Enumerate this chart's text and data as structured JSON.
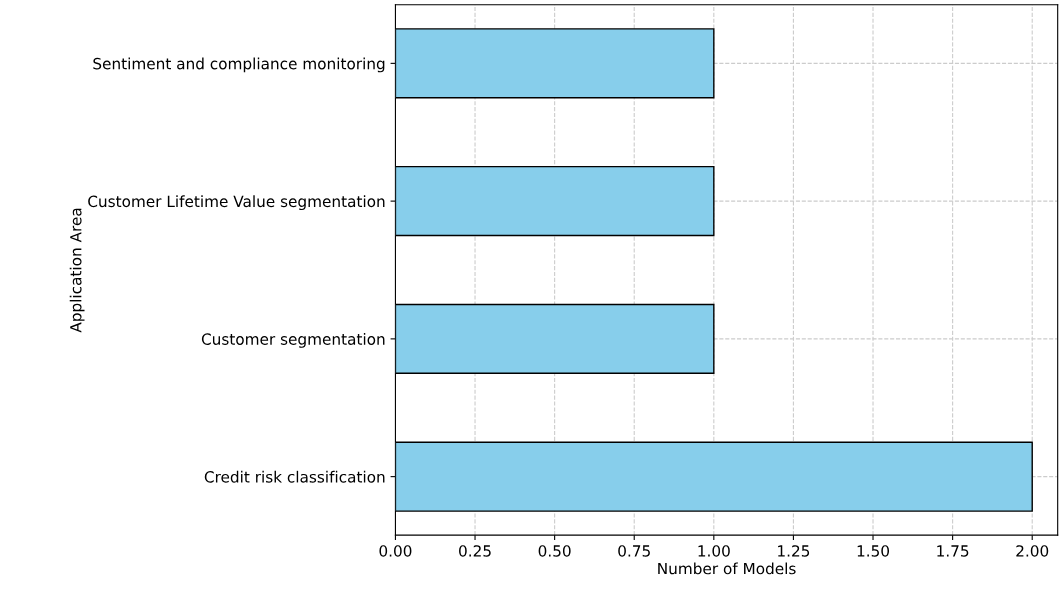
{
  "chart_data": {
    "type": "bar",
    "orientation": "horizontal",
    "xlabel": "Number of Models",
    "ylabel": "Application Area",
    "categories": [
      "Sentiment and compliance monitoring",
      "Customer Lifetime Value segmentation",
      "Customer segmentation",
      "Credit risk classification"
    ],
    "values": [
      1,
      1,
      1,
      2
    ],
    "color": "#87ceeb",
    "xlim": [
      0,
      2.08
    ],
    "xticks": [
      {
        "value": 0,
        "label": "0.00"
      },
      {
        "value": 0.25,
        "label": "0.25"
      },
      {
        "value": 0.5,
        "label": "0.50"
      },
      {
        "value": 0.75,
        "label": "0.75"
      },
      {
        "value": 1,
        "label": "1.00"
      },
      {
        "value": 1.25,
        "label": "1.25"
      },
      {
        "value": 1.5,
        "label": "1.50"
      },
      {
        "value": 1.75,
        "label": "1.75"
      },
      {
        "value": 2,
        "label": "2.00"
      }
    ],
    "grid": true
  }
}
